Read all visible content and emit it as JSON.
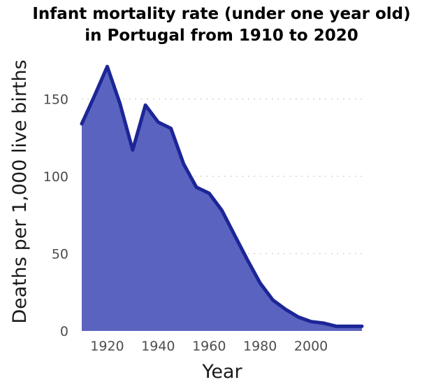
{
  "chart_data": {
    "type": "area",
    "title_lines": [
      "Infant mortality rate (under one year old)",
      "in Portugal from 1910 to 2020"
    ],
    "xlabel": "Year",
    "ylabel": "Deaths per 1,000 live births",
    "x_ticks": [
      1920,
      1940,
      1960,
      1980,
      2000
    ],
    "y_ticks": [
      0,
      50,
      100,
      150
    ],
    "xlim": [
      1910,
      2020
    ],
    "ylim": [
      0,
      175
    ],
    "grid": "horizontal dotted",
    "fill_color": "#5a63bf",
    "line_color": "#1c2696",
    "x": [
      1910,
      1915,
      1920,
      1925,
      1930,
      1935,
      1940,
      1945,
      1950,
      1955,
      1960,
      1965,
      1970,
      1975,
      1980,
      1985,
      1990,
      1995,
      2000,
      2005,
      2010,
      2015,
      2020
    ],
    "values": [
      134,
      152,
      171,
      147,
      117,
      146,
      135,
      131,
      108,
      93,
      89,
      78,
      62,
      46,
      31,
      20,
      14,
      9,
      6,
      5,
      3,
      3,
      3
    ]
  }
}
